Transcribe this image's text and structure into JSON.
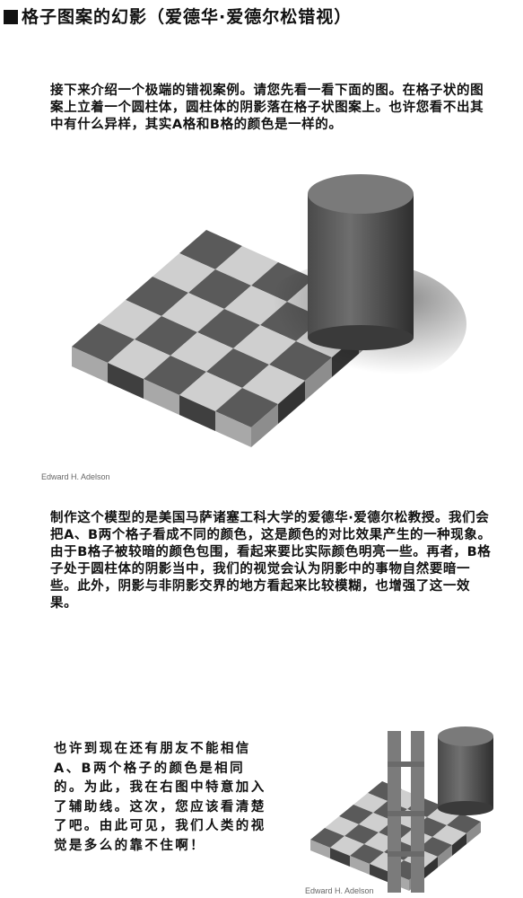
{
  "title": "格子图案的幻影（爱德华·爱德尔松错视）",
  "paragraph_1": "接下来介绍一个极端的错视案例。请您先看一看下面的图。在格子状的图案上立着一个圆柱体，圆柱体的阴影落在格子状图案上。也许您看不出其中有什么异样，其实A格和B格的颜色是一样的。",
  "figure_1": {
    "credit": "Edward H. Adelson"
  },
  "paragraph_2": "制作这个模型的是美国马萨诸塞工科大学的爱德华·爱德尔松教授。我们会把A、B两个格子看成不同的颜色，这是颜色的对比效果产生的一种现象。由于B格子被较暗的颜色包围，看起来要比实际颜色明亮一些。再者，B格子处于圆柱体的阴影当中，我们的视觉会认为阴影中的事物自然要暗一些。此外，阴影与非阴影交界的地方看起来比较模糊，也增强了这一效果。",
  "paragraph_3": "也许到现在还有朋友不能相信A、B两个格子的颜色是相同的。为此，我在右图中特意加入了辅助线。这次，您应该看清楚了吧。由此可见，我们人类的视觉是多么的靠不住啊！",
  "figure_2": {
    "credit": "Edward H. Adelson"
  }
}
